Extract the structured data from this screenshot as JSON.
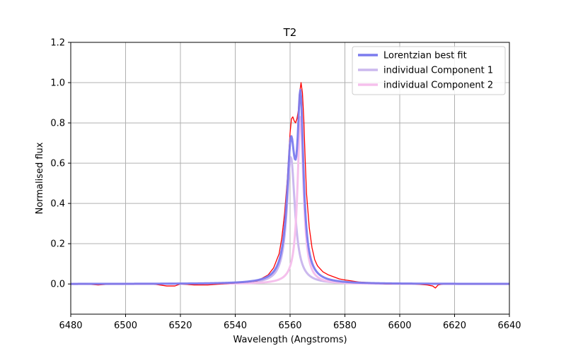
{
  "chart_data": {
    "type": "line",
    "title": "T2",
    "xlabel": "Wavelength (Angstroms)",
    "ylabel": "Normalised flux",
    "xlim": [
      6480,
      6640
    ],
    "ylim": [
      -0.15,
      1.2
    ],
    "xticks": [
      6480,
      6500,
      6520,
      6540,
      6560,
      6580,
      6600,
      6620,
      6640
    ],
    "xtick_labels": [
      "6480",
      "6500",
      "6520",
      "6540",
      "6560",
      "6580",
      "6600",
      "6620",
      "6640"
    ],
    "yticks": [
      0.0,
      0.2,
      0.4,
      0.6,
      0.8,
      1.0,
      1.2
    ],
    "ytick_labels": [
      "0.0",
      "0.2",
      "0.4",
      "0.6",
      "0.8",
      "1.0",
      "1.2"
    ],
    "grid": true,
    "legend_position": "top-right",
    "legend": [
      {
        "label": "Lorentzian best fit",
        "color": "#7b7bee"
      },
      {
        "label": "individual Component 1",
        "color": "#cbb8ee"
      },
      {
        "label": "individual Component 2",
        "color": "#f5c0ec"
      }
    ],
    "series": [
      {
        "name": "Lorentzian best fit",
        "color": "#7b7bee",
        "model": "lorentzian_sum",
        "components": [
          {
            "center": 6560.3,
            "amplitude": 0.63,
            "gamma": 1.8
          },
          {
            "center": 6563.8,
            "amplitude": 0.83,
            "gamma": 1.3
          }
        ]
      },
      {
        "name": "individual Component 1",
        "color": "#cbb8ee",
        "model": "lorentzian",
        "components": [
          {
            "center": 6560.3,
            "amplitude": 0.63,
            "gamma": 1.8
          }
        ]
      },
      {
        "name": "individual Component 2",
        "color": "#f5c0ec",
        "model": "lorentzian",
        "components": [
          {
            "center": 6563.8,
            "amplitude": 0.83,
            "gamma": 1.3
          }
        ]
      }
    ],
    "observed": {
      "color": "#ff0000",
      "x": [
        6480,
        6485,
        6490,
        6495,
        6500,
        6505,
        6510,
        6515,
        6518,
        6520,
        6525,
        6530,
        6535,
        6540,
        6545,
        6548,
        6550,
        6552,
        6554,
        6556,
        6557,
        6558,
        6559,
        6560,
        6560.5,
        6561,
        6561.5,
        6562,
        6562.5,
        6563,
        6563.5,
        6564,
        6564.5,
        6565,
        6565.5,
        6566,
        6567,
        6568,
        6569,
        6570,
        6572,
        6574,
        6576,
        6578,
        6580,
        6585,
        6590,
        6595,
        6600,
        6605,
        6610,
        6612,
        6613,
        6614,
        6616,
        6620,
        6625,
        6630,
        6635,
        6640
      ],
      "y": [
        0.0,
        0.0,
        -0.005,
        0.0,
        0.0,
        0.0,
        0.0,
        -0.01,
        -0.01,
        0.0,
        -0.005,
        -0.005,
        0.0,
        0.005,
        0.01,
        0.015,
        0.03,
        0.045,
        0.08,
        0.15,
        0.23,
        0.35,
        0.52,
        0.75,
        0.82,
        0.83,
        0.81,
        0.8,
        0.82,
        0.86,
        0.95,
        1.0,
        0.95,
        0.82,
        0.62,
        0.45,
        0.28,
        0.18,
        0.12,
        0.09,
        0.06,
        0.045,
        0.035,
        0.025,
        0.02,
        0.01,
        0.005,
        0.0,
        0.0,
        0.0,
        -0.005,
        -0.01,
        -0.02,
        -0.005,
        0.0,
        0.0,
        0.0,
        0.0,
        0.0,
        0.0
      ]
    }
  }
}
